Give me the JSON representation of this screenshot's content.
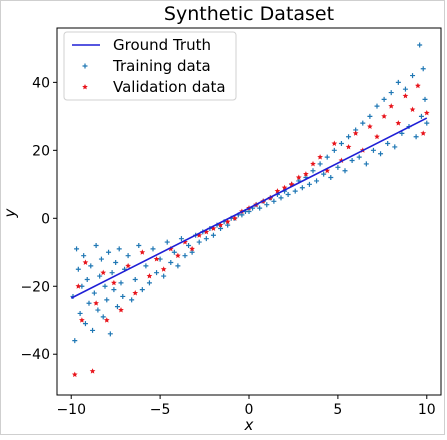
{
  "chart_data": {
    "type": "scatter",
    "title": "Synthetic Dataset",
    "xlabel": "x",
    "ylabel": "y",
    "xlim": [
      -10.8,
      10.8
    ],
    "ylim": [
      -52,
      56
    ],
    "xticks": [
      -10,
      -5,
      0,
      5,
      10
    ],
    "yticks": [
      -40,
      -20,
      0,
      20,
      40
    ],
    "grid": false,
    "legend_position": "top-left",
    "series": [
      {
        "name": "Ground Truth",
        "kind": "line",
        "color": "#1f1fd6",
        "points": [
          [
            -10,
            -23.5
          ],
          [
            0,
            3
          ],
          [
            10,
            29.5
          ]
        ]
      },
      {
        "name": "Training data",
        "kind": "scatter",
        "marker": "plus",
        "color": "#1f77b4",
        "points": [
          [
            -9.9,
            -23
          ],
          [
            -9.8,
            -36
          ],
          [
            -9.7,
            -9
          ],
          [
            -9.6,
            -15
          ],
          [
            -9.5,
            -28
          ],
          [
            -9.4,
            -20
          ],
          [
            -9.3,
            -11
          ],
          [
            -9.2,
            -31
          ],
          [
            -9.1,
            -18
          ],
          [
            -9.0,
            -25
          ],
          [
            -8.9,
            -14
          ],
          [
            -8.8,
            -33
          ],
          [
            -8.7,
            -22
          ],
          [
            -8.6,
            -8
          ],
          [
            -8.5,
            -27
          ],
          [
            -8.4,
            -17
          ],
          [
            -8.3,
            -12
          ],
          [
            -8.2,
            -29
          ],
          [
            -8.1,
            -20
          ],
          [
            -8.0,
            -24
          ],
          [
            -7.9,
            -10
          ],
          [
            -7.8,
            -34
          ],
          [
            -7.7,
            -16
          ],
          [
            -7.6,
            -21
          ],
          [
            -7.5,
            -13
          ],
          [
            -7.4,
            -26
          ],
          [
            -7.3,
            -9
          ],
          [
            -7.2,
            -19
          ],
          [
            -7.1,
            -23
          ],
          [
            -7.0,
            -15
          ],
          [
            -6.8,
            -11
          ],
          [
            -6.6,
            -24
          ],
          [
            -6.4,
            -18
          ],
          [
            -6.2,
            -8
          ],
          [
            -6.0,
            -21
          ],
          [
            -5.8,
            -14
          ],
          [
            -5.6,
            -19
          ],
          [
            -5.4,
            -9
          ],
          [
            -5.2,
            -16
          ],
          [
            -5.0,
            -12
          ],
          [
            -4.8,
            -17
          ],
          [
            -4.6,
            -7
          ],
          [
            -4.4,
            -13
          ],
          [
            -4.2,
            -10
          ],
          [
            -4.0,
            -14
          ],
          [
            -3.8,
            -6
          ],
          [
            -3.6,
            -11
          ],
          [
            -3.4,
            -8
          ],
          [
            -3.2,
            -10
          ],
          [
            -3.0,
            -5
          ],
          [
            -2.8,
            -7
          ],
          [
            -2.6,
            -4
          ],
          [
            -2.4,
            -6
          ],
          [
            -2.2,
            -3
          ],
          [
            -2.0,
            -5
          ],
          [
            -1.8,
            -2
          ],
          [
            -1.6,
            -3
          ],
          [
            -1.4,
            -1
          ],
          [
            -1.2,
            -2
          ],
          [
            -1.0,
            0
          ],
          [
            -0.8,
            0
          ],
          [
            -0.6,
            1
          ],
          [
            -0.4,
            1
          ],
          [
            -0.2,
            2
          ],
          [
            0.0,
            2
          ],
          [
            0.2,
            3
          ],
          [
            0.4,
            4
          ],
          [
            0.6,
            3
          ],
          [
            0.8,
            5
          ],
          [
            1.0,
            4
          ],
          [
            1.2,
            6
          ],
          [
            1.4,
            5
          ],
          [
            1.6,
            7
          ],
          [
            1.8,
            6
          ],
          [
            2.0,
            8
          ],
          [
            2.2,
            7
          ],
          [
            2.4,
            10
          ],
          [
            2.6,
            8
          ],
          [
            2.8,
            11
          ],
          [
            3.0,
            9
          ],
          [
            3.2,
            12
          ],
          [
            3.4,
            10
          ],
          [
            3.6,
            14
          ],
          [
            3.8,
            11
          ],
          [
            4.0,
            16
          ],
          [
            4.2,
            13
          ],
          [
            4.4,
            18
          ],
          [
            4.6,
            12
          ],
          [
            4.8,
            20
          ],
          [
            5.0,
            15
          ],
          [
            5.2,
            22
          ],
          [
            5.4,
            14
          ],
          [
            5.6,
            24
          ],
          [
            5.8,
            17
          ],
          [
            6.0,
            26
          ],
          [
            6.2,
            18
          ],
          [
            6.4,
            28
          ],
          [
            6.6,
            16
          ],
          [
            6.8,
            30
          ],
          [
            7.0,
            20
          ],
          [
            7.2,
            33
          ],
          [
            7.4,
            19
          ],
          [
            7.6,
            35
          ],
          [
            7.8,
            22
          ],
          [
            8.0,
            37
          ],
          [
            8.2,
            21
          ],
          [
            8.4,
            40
          ],
          [
            8.6,
            25
          ],
          [
            8.8,
            38
          ],
          [
            9.0,
            27
          ],
          [
            9.2,
            42
          ],
          [
            9.4,
            24
          ],
          [
            9.6,
            51
          ],
          [
            9.7,
            30
          ],
          [
            9.8,
            44
          ],
          [
            9.9,
            35
          ],
          [
            10.0,
            28
          ]
        ]
      },
      {
        "name": "Validation data",
        "kind": "scatter",
        "marker": "star",
        "color": "#e8141b",
        "points": [
          [
            -9.8,
            -46
          ],
          [
            -9.6,
            -20
          ],
          [
            -9.4,
            -30
          ],
          [
            -9.2,
            -13
          ],
          [
            -8.8,
            -45
          ],
          [
            -8.6,
            -25
          ],
          [
            -8.2,
            -16
          ],
          [
            -8.0,
            -30
          ],
          [
            -7.6,
            -19
          ],
          [
            -7.2,
            -27
          ],
          [
            -6.8,
            -14
          ],
          [
            -6.4,
            -22
          ],
          [
            -6.0,
            -10
          ],
          [
            -5.6,
            -17
          ],
          [
            -5.2,
            -12
          ],
          [
            -4.8,
            -15
          ],
          [
            -4.4,
            -9
          ],
          [
            -4.0,
            -11
          ],
          [
            -3.6,
            -7
          ],
          [
            -3.2,
            -9
          ],
          [
            -2.8,
            -5
          ],
          [
            -2.4,
            -4
          ],
          [
            -2.0,
            -3
          ],
          [
            -1.6,
            -2
          ],
          [
            -1.2,
            -1
          ],
          [
            -0.8,
            0
          ],
          [
            -0.4,
            2
          ],
          [
            0.0,
            3
          ],
          [
            0.4,
            4
          ],
          [
            0.8,
            5
          ],
          [
            1.2,
            6
          ],
          [
            1.6,
            8
          ],
          [
            2.0,
            9
          ],
          [
            2.4,
            10
          ],
          [
            2.8,
            12
          ],
          [
            3.2,
            13
          ],
          [
            3.6,
            16
          ],
          [
            4.0,
            18
          ],
          [
            4.4,
            14
          ],
          [
            4.8,
            22
          ],
          [
            5.2,
            17
          ],
          [
            5.6,
            21
          ],
          [
            6.0,
            25
          ],
          [
            6.4,
            20
          ],
          [
            6.8,
            27
          ],
          [
            7.2,
            24
          ],
          [
            7.6,
            30
          ],
          [
            8.0,
            33
          ],
          [
            8.4,
            28
          ],
          [
            8.8,
            36
          ],
          [
            9.2,
            32
          ],
          [
            9.5,
            39
          ],
          [
            9.8,
            25
          ],
          [
            10.0,
            31
          ]
        ]
      }
    ]
  }
}
